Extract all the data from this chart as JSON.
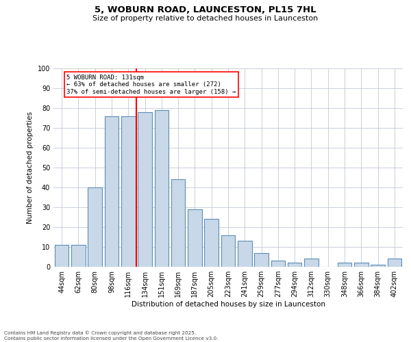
{
  "title1": "5, WOBURN ROAD, LAUNCESTON, PL15 7HL",
  "title2": "Size of property relative to detached houses in Launceston",
  "xlabel": "Distribution of detached houses by size in Launceston",
  "ylabel": "Number of detached properties",
  "categories": [
    "44sqm",
    "62sqm",
    "80sqm",
    "98sqm",
    "116sqm",
    "134sqm",
    "151sqm",
    "169sqm",
    "187sqm",
    "205sqm",
    "223sqm",
    "241sqm",
    "259sqm",
    "277sqm",
    "294sqm",
    "312sqm",
    "330sqm",
    "348sqm",
    "366sqm",
    "384sqm",
    "402sqm"
  ],
  "bar_vals": [
    11,
    11,
    40,
    76,
    76,
    78,
    79,
    44,
    29,
    24,
    16,
    13,
    7,
    3,
    2,
    4,
    0,
    2,
    2,
    1,
    4
  ],
  "bar_color": "#c8d8e8",
  "bar_edge_color": "#5b8db8",
  "vline_color": "red",
  "annotation_text": "5 WOBURN ROAD: 131sqm\n← 63% of detached houses are smaller (272)\n37% of semi-detached houses are larger (158) →",
  "ylim": [
    0,
    100
  ],
  "yticks": [
    0,
    10,
    20,
    30,
    40,
    50,
    60,
    70,
    80,
    90,
    100
  ],
  "grid_color": "#c0c8d8",
  "footer1": "Contains HM Land Registry data © Crown copyright and database right 2025.",
  "footer2": "Contains public sector information licensed under the Open Government Licence v3.0."
}
